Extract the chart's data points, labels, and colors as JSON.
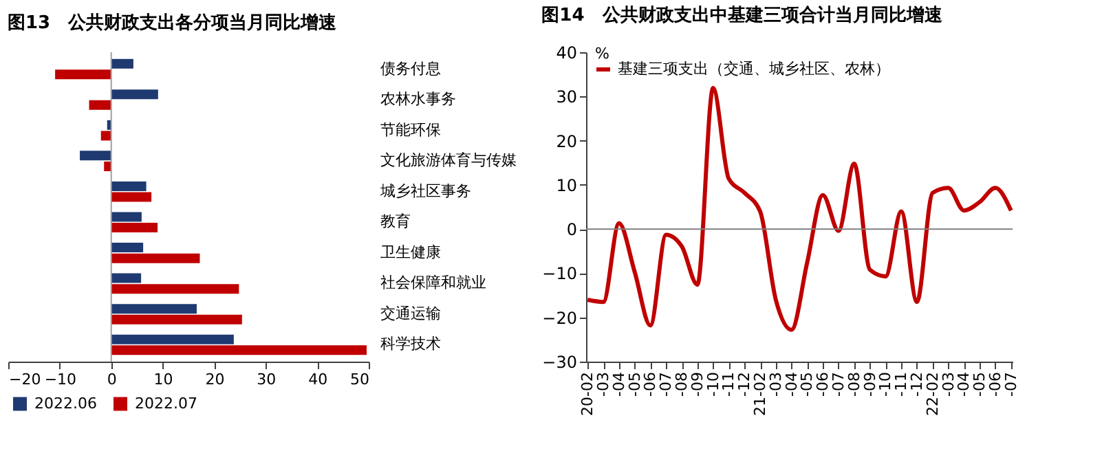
{
  "chart_data": [
    {
      "type": "bar",
      "orientation": "horizontal",
      "title": "图13　公共财政支出各分项当月同比增速",
      "categories": [
        "债务付息",
        "农林水事务",
        "节能环保",
        "文化旅游体育与传媒",
        "城乡社区事务",
        "教育",
        "卫生健康",
        "社会保障和就业",
        "交通运输",
        "科学技术"
      ],
      "series": [
        {
          "name": "2022.06",
          "color": "#1f3a70",
          "values": [
            4.3,
            9.1,
            -0.8,
            -6.1,
            6.8,
            5.9,
            6.2,
            5.8,
            16.6,
            23.8
          ]
        },
        {
          "name": "2022.07",
          "color": "#c00000",
          "values": [
            -10.9,
            -4.3,
            -2.0,
            -1.4,
            7.8,
            9.0,
            17.2,
            24.8,
            25.4,
            49.6
          ]
        }
      ],
      "xlim": [
        -20,
        50
      ],
      "xticks": [
        -20,
        -10,
        0,
        10,
        20,
        30,
        40,
        50
      ],
      "ref_lines": [
        {
          "axis": "x",
          "value": 0,
          "color": "#a0a0a0"
        }
      ],
      "grid": false,
      "legend": "bottom"
    },
    {
      "type": "line",
      "title": "图14　公共财政支出中基建三项合计当月同比增速",
      "ylabel": "%",
      "categories": [
        "20-02",
        "-03",
        "-04",
        "-05",
        "-06",
        "-07",
        "-08",
        "-09",
        "-10",
        "-11",
        "-12",
        "21-02",
        "-03",
        "-04",
        "-05",
        "-06",
        "-07",
        "-08",
        "-09",
        "-10",
        "-11",
        "-12",
        "22-02",
        "-03",
        "-04",
        "-05",
        "-06",
        "-07"
      ],
      "series": [
        {
          "name": "基建三项支出（交通、城乡社区、农林）",
          "color": "#c00000",
          "values": [
            -16,
            -16.5,
            1.3,
            -9.7,
            -21.8,
            -1.3,
            -3.9,
            -12.6,
            31.9,
            11.4,
            8.2,
            4.0,
            -16,
            -22.8,
            -7.6,
            7.7,
            -0.4,
            14.8,
            -9.2,
            -10.7,
            4.0,
            -16.5,
            8.2,
            9.3,
            4.2,
            6.1,
            9.3,
            4.2
          ]
        }
      ],
      "ylim": [
        -30,
        40
      ],
      "yticks": [
        -30,
        -20,
        -10,
        0,
        10,
        20,
        30,
        40
      ],
      "ref_lines": [
        {
          "axis": "y",
          "value": 0,
          "color": "#808080"
        }
      ],
      "grid": false,
      "legend": "top left",
      "marker": "none",
      "line_style": "solid"
    }
  ]
}
